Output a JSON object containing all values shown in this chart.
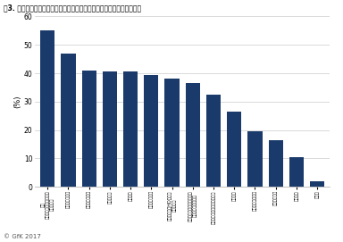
{
  "title": "図3. あおり運転の被害にあわない為にドライブレコーダーに求める機能",
  "values": [
    55,
    47,
    41,
    40.5,
    40.5,
    39.5,
    38,
    36.5,
    32.5,
    26.5,
    19.5,
    16.5,
    10.5,
    2
  ],
  "categories": [
    "前方\n後方の前方にカメラがつ\nていること",
    "夜間・暗所対応",
    "３６０度カメラ",
    "長時間録画",
    "常時録画",
    "駐車時監視録画",
    "高画質（フルHD以上の\n高解像度）",
    "衝撃検知時（急ブレーキや\n接触等）の自動録画",
    "ＧＰＳ受信（位置情報記憶）",
    "音声記録",
    "ＬＥＤ信号機対応",
    "安全運転支援",
    "手動録画",
    "その他"
  ],
  "bar_color": "#1a3a6b",
  "ylabel": "(%)",
  "ylim": [
    0,
    60
  ],
  "yticks": [
    0,
    10,
    20,
    30,
    40,
    50,
    60
  ],
  "footer": "© GfK 2017",
  "background_color": "#ffffff",
  "grid_color": "#cccccc"
}
